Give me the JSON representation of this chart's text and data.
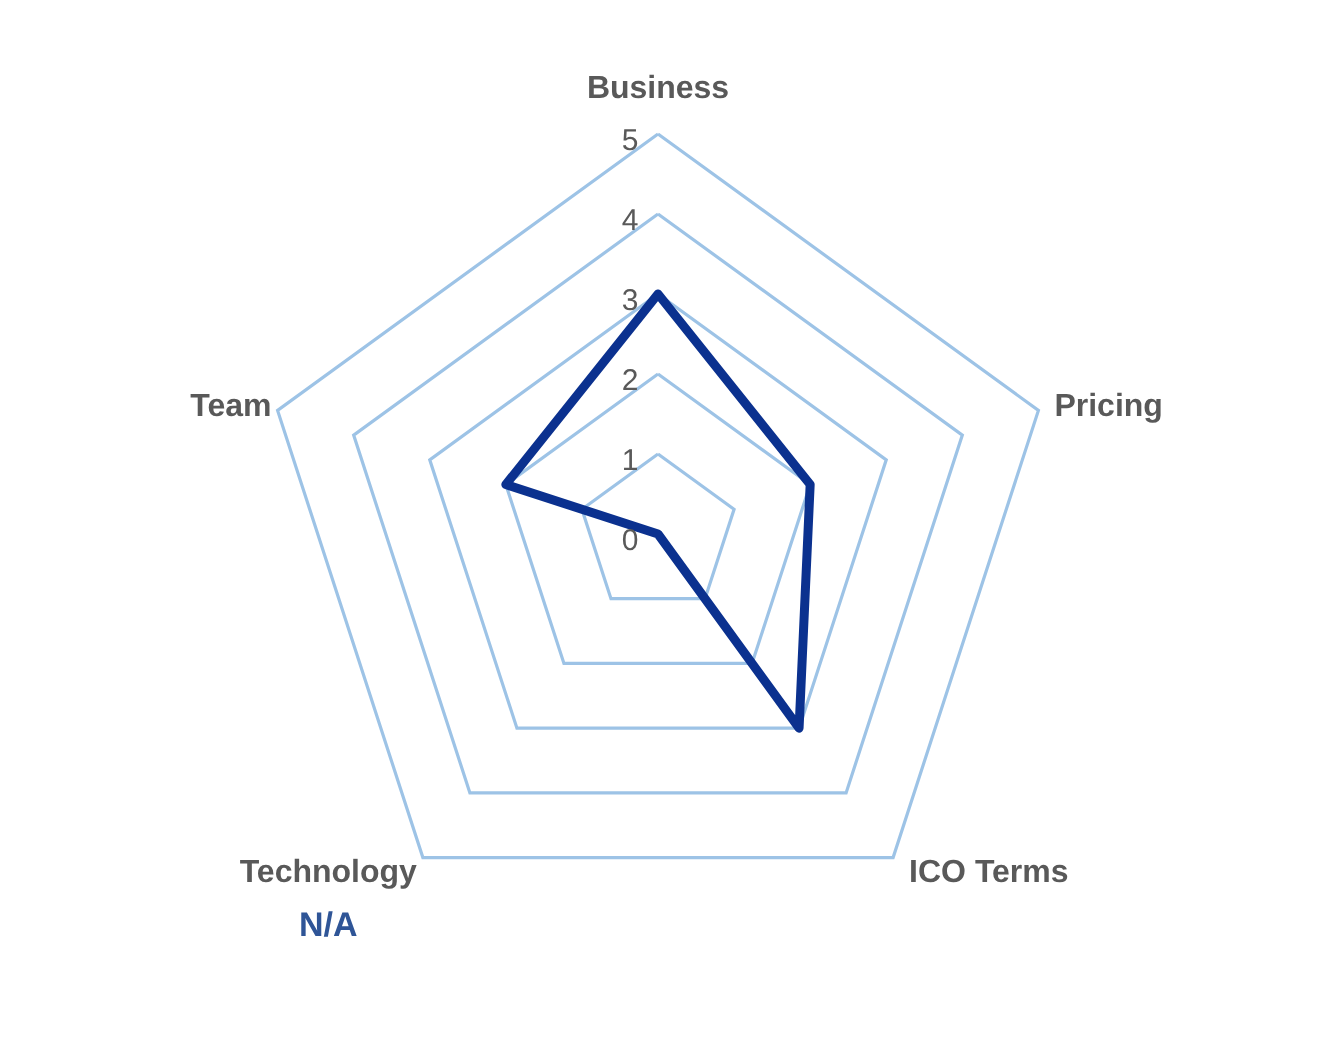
{
  "chart_data": {
    "type": "radar",
    "categories": [
      "Business",
      "Pricing",
      "ICO Terms",
      "Technology",
      "Team"
    ],
    "series": [
      {
        "color": "#0b318f",
        "values": [
          3,
          2,
          3,
          0,
          2
        ]
      }
    ],
    "ylim": [
      0,
      5
    ],
    "yticks": [
      0,
      1,
      2,
      3,
      4,
      5
    ],
    "grid": true,
    "annotations": [
      {
        "text": "N/A",
        "x": "Technology"
      }
    ]
  }
}
